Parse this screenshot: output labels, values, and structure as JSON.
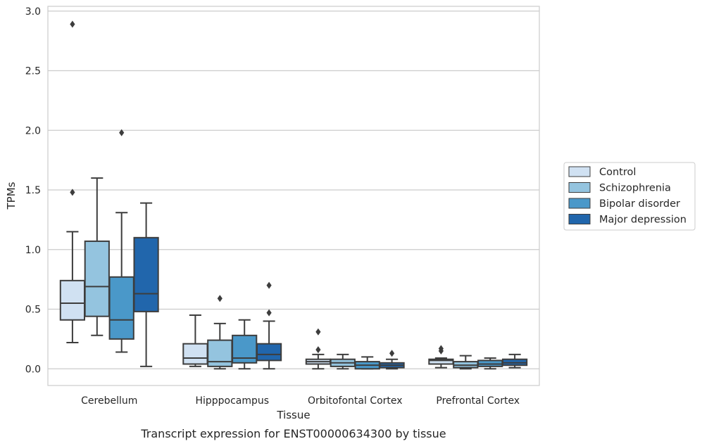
{
  "caption": "Transcript expression for ENST00000634300 by tissue",
  "chart_data": {
    "type": "box",
    "xlabel": "Tissue",
    "ylabel": "TPMs",
    "ylim": [
      -0.14,
      3.04
    ],
    "yticks": [
      0.0,
      0.5,
      1.0,
      1.5,
      2.0,
      2.5,
      3.0
    ],
    "ytick_labels": [
      "0.0",
      "0.5",
      "1.0",
      "1.5",
      "2.0",
      "2.5",
      "3.0"
    ],
    "grid": "horizontal",
    "legend_position": "right",
    "categories": [
      "Cerebellum",
      "Hipppocampus",
      "Orbitofontal Cortex",
      "Prefrontal Cortex"
    ],
    "series": [
      {
        "name": "Control",
        "color": "#d0e1f2",
        "boxes": [
          {
            "whislo": 0.22,
            "q1": 0.41,
            "med": 0.55,
            "q3": 0.74,
            "whishi": 1.15,
            "fliers": [
              1.48,
              2.89
            ]
          },
          {
            "whislo": 0.02,
            "q1": 0.04,
            "med": 0.09,
            "q3": 0.21,
            "whishi": 0.45,
            "fliers": []
          },
          {
            "whislo": 0.0,
            "q1": 0.04,
            "med": 0.06,
            "q3": 0.08,
            "whishi": 0.12,
            "fliers": [
              0.16,
              0.31
            ]
          },
          {
            "whislo": 0.01,
            "q1": 0.04,
            "med": 0.07,
            "q3": 0.08,
            "whishi": 0.09,
            "fliers": [
              0.15,
              0.17
            ]
          }
        ]
      },
      {
        "name": "Schizophrenia",
        "color": "#94c4df",
        "boxes": [
          {
            "whislo": 0.28,
            "q1": 0.44,
            "med": 0.69,
            "q3": 1.07,
            "whishi": 1.6,
            "fliers": []
          },
          {
            "whislo": 0.0,
            "q1": 0.02,
            "med": 0.06,
            "q3": 0.24,
            "whishi": 0.38,
            "fliers": [
              0.59
            ]
          },
          {
            "whislo": 0.0,
            "q1": 0.02,
            "med": 0.05,
            "q3": 0.08,
            "whishi": 0.12,
            "fliers": []
          },
          {
            "whislo": 0.0,
            "q1": 0.01,
            "med": 0.03,
            "q3": 0.06,
            "whishi": 0.11,
            "fliers": []
          }
        ]
      },
      {
        "name": "Bipolar disorder",
        "color": "#4a98c9",
        "boxes": [
          {
            "whislo": 0.14,
            "q1": 0.25,
            "med": 0.41,
            "q3": 0.77,
            "whishi": 1.31,
            "fliers": [
              1.98
            ]
          },
          {
            "whislo": 0.0,
            "q1": 0.05,
            "med": 0.09,
            "q3": 0.28,
            "whishi": 0.41,
            "fliers": []
          },
          {
            "whislo": 0.0,
            "q1": 0.0,
            "med": 0.03,
            "q3": 0.06,
            "whishi": 0.1,
            "fliers": []
          },
          {
            "whislo": 0.0,
            "q1": 0.02,
            "med": 0.04,
            "q3": 0.07,
            "whishi": 0.09,
            "fliers": []
          }
        ]
      },
      {
        "name": "Major depression",
        "color": "#2166ac",
        "boxes": [
          {
            "whislo": 0.02,
            "q1": 0.48,
            "med": 0.63,
            "q3": 1.1,
            "whishi": 1.39,
            "fliers": []
          },
          {
            "whislo": 0.0,
            "q1": 0.07,
            "med": 0.12,
            "q3": 0.21,
            "whishi": 0.4,
            "fliers": [
              0.47,
              0.7
            ]
          },
          {
            "whislo": 0.0,
            "q1": 0.01,
            "med": 0.03,
            "q3": 0.05,
            "whishi": 0.08,
            "fliers": [
              0.13
            ]
          },
          {
            "whislo": 0.01,
            "q1": 0.03,
            "med": 0.05,
            "q3": 0.08,
            "whishi": 0.12,
            "fliers": []
          }
        ]
      }
    ]
  }
}
